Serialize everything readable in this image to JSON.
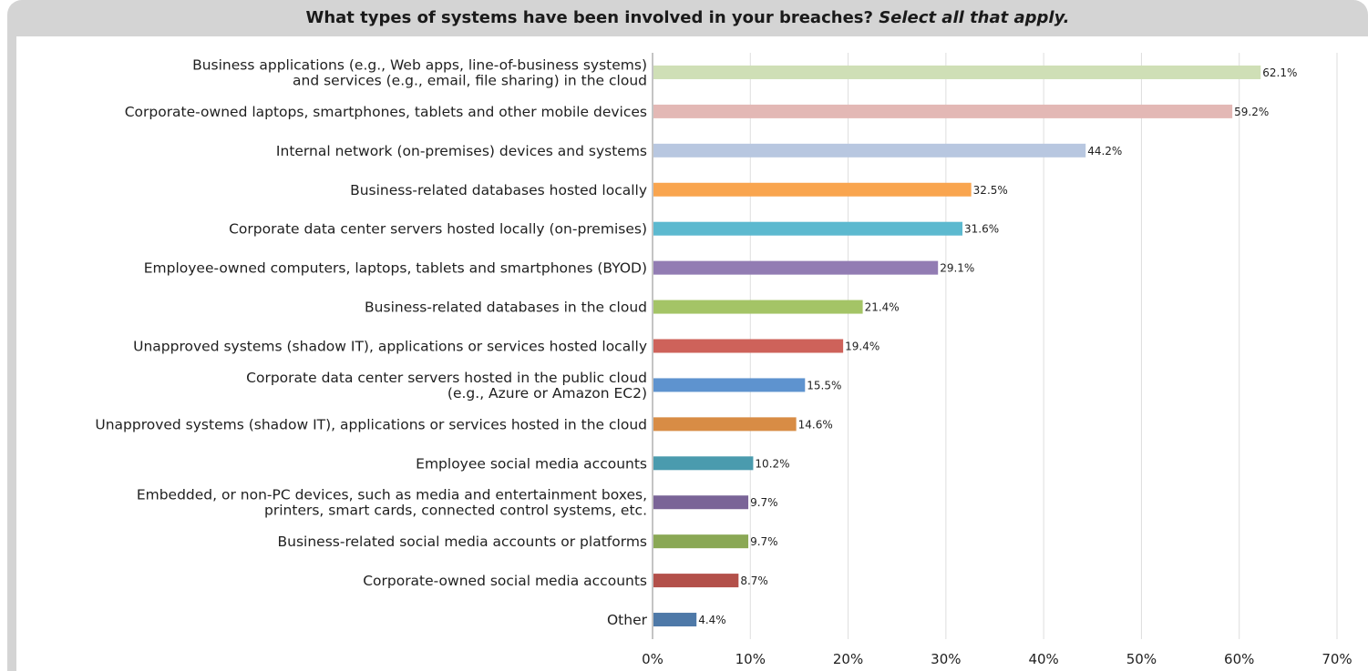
{
  "chart_data": {
    "type": "bar",
    "orientation": "horizontal",
    "title": "What types of systems have been involved in your breaches?",
    "subtitle": "Select all that apply.",
    "xlim": [
      0,
      70
    ],
    "x_ticks": [
      "0%",
      "10%",
      "20%",
      "30%",
      "40%",
      "50%",
      "60%",
      "70%"
    ],
    "grid": true,
    "categories": [
      [
        "Business applications (e.g., Web apps, line-of-business systems)",
        "and services (e.g., email, file sharing) in the cloud"
      ],
      [
        "Corporate-owned laptops, smartphones, tablets and other mobile devices"
      ],
      [
        "Internal network (on-premises) devices and systems"
      ],
      [
        "Business-related databases hosted locally"
      ],
      [
        "Corporate data center servers hosted locally (on-premises)"
      ],
      [
        "Employee-owned computers, laptops, tablets and smartphones (BYOD)"
      ],
      [
        "Business-related databases in the cloud"
      ],
      [
        "Unapproved systems (shadow IT), applications or services hosted locally"
      ],
      [
        "Corporate data center servers hosted in the public cloud",
        "(e.g., Azure or Amazon EC2)"
      ],
      [
        "Unapproved systems (shadow IT), applications or services hosted in the cloud"
      ],
      [
        "Employee social media accounts"
      ],
      [
        "Embedded, or non-PC devices, such as media and entertainment boxes,",
        "printers, smart cards, connected control systems, etc."
      ],
      [
        "Business-related social media accounts or platforms"
      ],
      [
        "Corporate-owned social media accounts"
      ],
      [
        "Other"
      ]
    ],
    "values": [
      62.1,
      59.2,
      44.2,
      32.5,
      31.6,
      29.1,
      21.4,
      19.4,
      15.5,
      14.6,
      10.2,
      9.7,
      9.7,
      8.7,
      4.4
    ],
    "value_labels": [
      "62.1%",
      "59.2%",
      "44.2%",
      "32.5%",
      "31.6%",
      "29.1%",
      "21.4%",
      "19.4%",
      "15.5%",
      "14.6%",
      "10.2%",
      "9.7%",
      "9.7%",
      "8.7%",
      "4.4%"
    ],
    "colors": [
      "#cfdfb6",
      "#e3b8b5",
      "#b8c7e0",
      "#f9a54f",
      "#5cb9cf",
      "#927cb3",
      "#a4c466",
      "#ce625a",
      "#5e93cf",
      "#d88c45",
      "#4a9bae",
      "#7a6497",
      "#8aa855",
      "#b3504a",
      "#4e79a8"
    ]
  }
}
